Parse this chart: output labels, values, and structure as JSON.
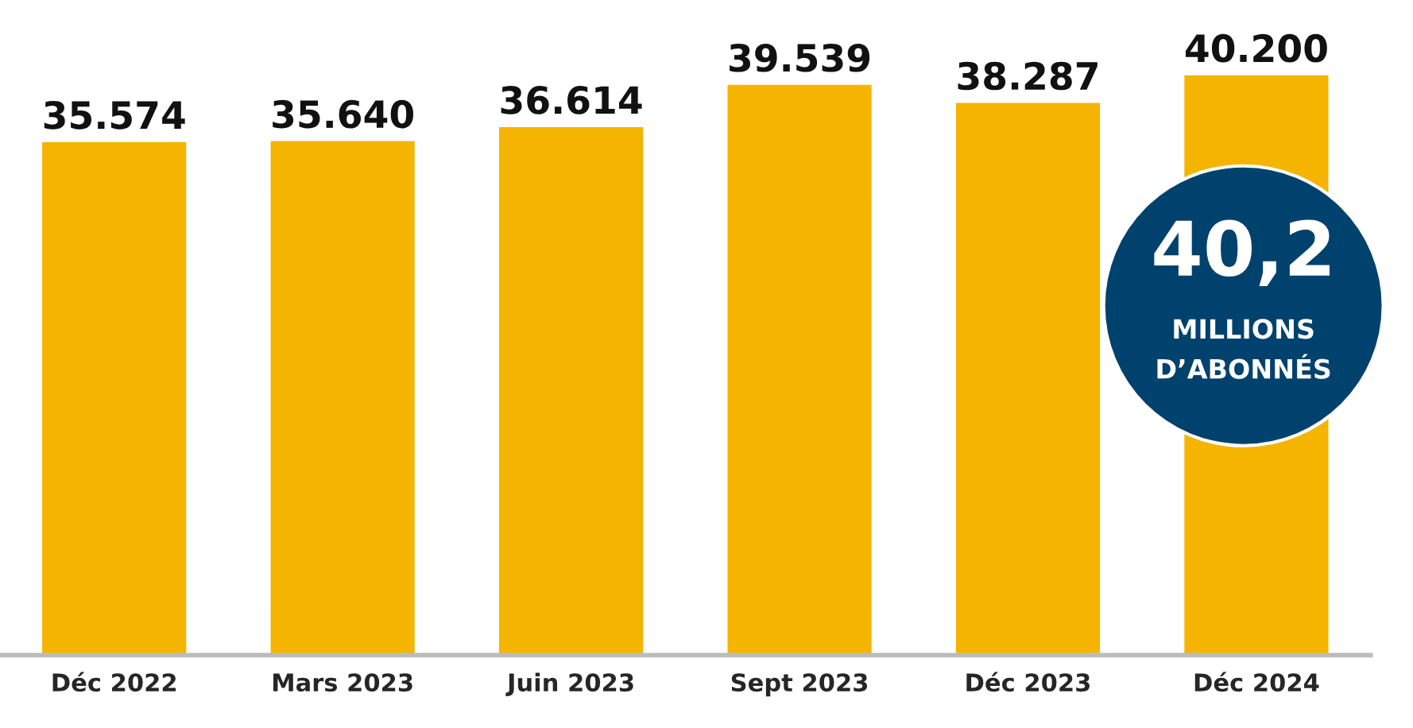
{
  "chart_data": {
    "type": "bar",
    "categories": [
      "Déc 2022",
      "Mars 2023",
      "Juin 2023",
      "Sept 2023",
      "Déc 2023",
      "Déc 2024"
    ],
    "values": [
      35574,
      35640,
      36614,
      39539,
      38287,
      40200
    ],
    "value_labels": [
      "35.574",
      "35.640",
      "36.614",
      "39.539",
      "38.287",
      "40.200"
    ],
    "color": "#f5b400",
    "tick_labels": "x",
    "grid": false,
    "legend": false,
    "annotations": [
      "40,2",
      "MILLIONS",
      "D’ABONNÉS"
    ]
  }
}
